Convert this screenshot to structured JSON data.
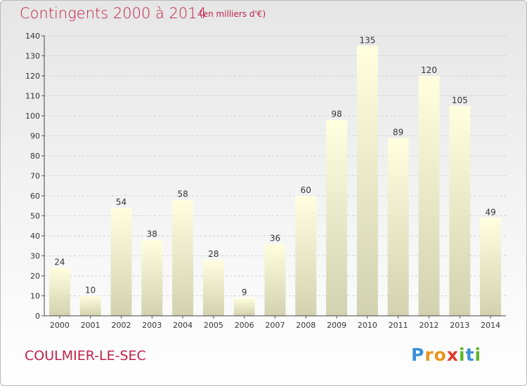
{
  "header": {
    "title": "Contingents 2000 à 2014",
    "subtitle": "(en milliers d'€)"
  },
  "footer": {
    "commune": "COULMIER-LE-SEC",
    "logo": "Proxiti"
  },
  "colors": {
    "title": "#c0204a",
    "bar_top": "#ffffe0",
    "bar_bottom": "#d2d2b0",
    "logo_letters": [
      "#3a8fd8",
      "#e8961e",
      "#e8961e",
      "#e23a2a",
      "#5fb52a",
      "#3a8fd8",
      "#5fb52a"
    ]
  },
  "chart_data": {
    "type": "bar",
    "categories": [
      "2000",
      "2001",
      "2002",
      "2003",
      "2004",
      "2005",
      "2006",
      "2007",
      "2008",
      "2009",
      "2010",
      "2011",
      "2012",
      "2013",
      "2014"
    ],
    "values": [
      24,
      10,
      54,
      38,
      58,
      28,
      9,
      36,
      60,
      98,
      135,
      89,
      120,
      105,
      49
    ],
    "ylim": [
      0,
      140
    ],
    "yticks": [
      0,
      10,
      20,
      30,
      40,
      50,
      60,
      70,
      80,
      90,
      100,
      110,
      120,
      130,
      140
    ],
    "grid": true,
    "title": "Contingents 2000 à 2014",
    "xlabel": "",
    "ylabel": ""
  }
}
